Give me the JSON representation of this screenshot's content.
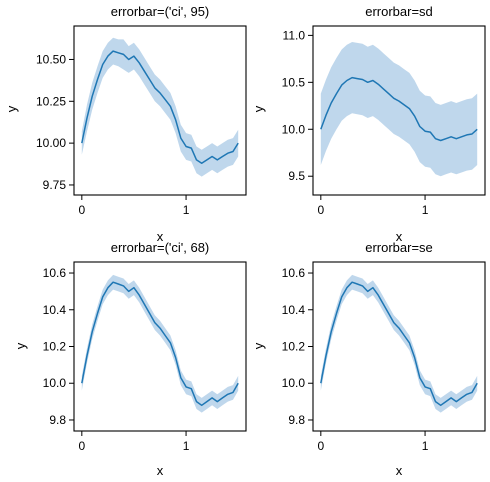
{
  "chart_data": [
    {
      "type": "line",
      "title": "errorbar=('ci', 95)",
      "xlabel": "x",
      "ylabel": "y",
      "xlim": [
        -0.075,
        1.575
      ],
      "ylim": [
        9.69,
        10.7
      ],
      "xticks": [
        0,
        1
      ],
      "yticks": [
        9.75,
        10.0,
        10.25,
        10.5
      ],
      "ytick_labels": [
        "9.75",
        "10.00",
        "10.25",
        "10.50"
      ],
      "grid": false,
      "color": "#1f77b4",
      "band_color": "#a9c9e6",
      "series": [
        {
          "x": [
            0.0,
            0.05,
            0.1,
            0.15,
            0.2,
            0.25,
            0.3,
            0.35,
            0.4,
            0.45,
            0.5,
            0.55,
            0.6,
            0.65,
            0.7,
            0.75,
            0.8,
            0.85,
            0.9,
            0.95,
            1.0,
            1.05,
            1.1,
            1.15,
            1.2,
            1.25,
            1.3,
            1.35,
            1.4,
            1.45,
            1.5
          ],
          "y": [
            10.0,
            10.15,
            10.28,
            10.38,
            10.47,
            10.52,
            10.55,
            10.54,
            10.53,
            10.5,
            10.52,
            10.48,
            10.43,
            10.38,
            10.33,
            10.3,
            10.26,
            10.22,
            10.14,
            10.03,
            9.98,
            9.97,
            9.9,
            9.88,
            9.9,
            9.92,
            9.9,
            9.92,
            9.94,
            9.95,
            10.0
          ],
          "lower": [
            9.93,
            10.07,
            10.2,
            10.3,
            10.39,
            10.44,
            10.47,
            10.46,
            10.44,
            10.42,
            10.44,
            10.4,
            10.35,
            10.3,
            10.25,
            10.22,
            10.18,
            10.14,
            10.06,
            9.95,
            9.9,
            9.89,
            9.82,
            9.8,
            9.82,
            9.84,
            9.82,
            9.84,
            9.86,
            9.87,
            9.92
          ],
          "upper": [
            10.07,
            10.23,
            10.36,
            10.46,
            10.55,
            10.6,
            10.63,
            10.62,
            10.62,
            10.58,
            10.6,
            10.56,
            10.51,
            10.46,
            10.41,
            10.38,
            10.34,
            10.3,
            10.22,
            10.11,
            10.06,
            10.05,
            9.98,
            9.96,
            9.98,
            10.0,
            9.98,
            10.0,
            10.02,
            10.03,
            10.08
          ]
        }
      ]
    },
    {
      "type": "line",
      "title": "errorbar=sd",
      "xlabel": "x",
      "ylabel": "y",
      "xlim": [
        -0.075,
        1.575
      ],
      "ylim": [
        9.3,
        11.1
      ],
      "xticks": [
        0,
        1
      ],
      "yticks": [
        9.5,
        10.0,
        10.5,
        11.0
      ],
      "ytick_labels": [
        "9.5",
        "10.0",
        "10.5",
        "11.0"
      ],
      "grid": false,
      "color": "#1f77b4",
      "band_color": "#a9c9e6",
      "series": [
        {
          "x": [
            0.0,
            0.05,
            0.1,
            0.15,
            0.2,
            0.25,
            0.3,
            0.35,
            0.4,
            0.45,
            0.5,
            0.55,
            0.6,
            0.65,
            0.7,
            0.75,
            0.8,
            0.85,
            0.9,
            0.95,
            1.0,
            1.05,
            1.1,
            1.15,
            1.2,
            1.25,
            1.3,
            1.35,
            1.4,
            1.45,
            1.5
          ],
          "y": [
            10.0,
            10.15,
            10.28,
            10.38,
            10.47,
            10.52,
            10.55,
            10.54,
            10.53,
            10.5,
            10.52,
            10.48,
            10.43,
            10.38,
            10.33,
            10.3,
            10.26,
            10.22,
            10.14,
            10.03,
            9.98,
            9.97,
            9.9,
            9.88,
            9.9,
            9.92,
            9.9,
            9.92,
            9.94,
            9.95,
            10.0
          ],
          "lower": [
            9.62,
            9.77,
            9.9,
            10.0,
            10.09,
            10.14,
            10.17,
            10.16,
            10.15,
            10.12,
            10.14,
            10.1,
            10.05,
            10.0,
            9.95,
            9.92,
            9.88,
            9.84,
            9.76,
            9.65,
            9.6,
            9.59,
            9.52,
            9.5,
            9.52,
            9.54,
            9.52,
            9.54,
            9.56,
            9.57,
            9.62
          ],
          "upper": [
            10.38,
            10.53,
            10.66,
            10.76,
            10.85,
            10.9,
            10.93,
            10.92,
            10.91,
            10.88,
            10.9,
            10.86,
            10.81,
            10.76,
            10.71,
            10.68,
            10.64,
            10.6,
            10.52,
            10.41,
            10.36,
            10.35,
            10.28,
            10.26,
            10.28,
            10.3,
            10.28,
            10.3,
            10.32,
            10.33,
            10.38
          ]
        }
      ]
    },
    {
      "type": "line",
      "title": "errorbar=('ci', 68)",
      "xlabel": "x",
      "ylabel": "y",
      "xlim": [
        -0.075,
        1.575
      ],
      "ylim": [
        9.74,
        10.66
      ],
      "xticks": [
        0,
        1
      ],
      "yticks": [
        9.8,
        10.0,
        10.2,
        10.4,
        10.6
      ],
      "ytick_labels": [
        "9.8",
        "10.0",
        "10.2",
        "10.4",
        "10.6"
      ],
      "grid": false,
      "color": "#1f77b4",
      "band_color": "#a9c9e6",
      "series": [
        {
          "x": [
            0.0,
            0.05,
            0.1,
            0.15,
            0.2,
            0.25,
            0.3,
            0.35,
            0.4,
            0.45,
            0.5,
            0.55,
            0.6,
            0.65,
            0.7,
            0.75,
            0.8,
            0.85,
            0.9,
            0.95,
            1.0,
            1.05,
            1.1,
            1.15,
            1.2,
            1.25,
            1.3,
            1.35,
            1.4,
            1.45,
            1.5
          ],
          "y": [
            10.0,
            10.15,
            10.28,
            10.38,
            10.47,
            10.52,
            10.55,
            10.54,
            10.53,
            10.5,
            10.52,
            10.48,
            10.43,
            10.38,
            10.33,
            10.3,
            10.26,
            10.22,
            10.14,
            10.03,
            9.98,
            9.97,
            9.9,
            9.88,
            9.9,
            9.92,
            9.9,
            9.92,
            9.94,
            9.95,
            10.0
          ],
          "lower": [
            9.96,
            10.11,
            10.24,
            10.34,
            10.43,
            10.48,
            10.51,
            10.5,
            10.49,
            10.46,
            10.48,
            10.44,
            10.39,
            10.34,
            10.29,
            10.26,
            10.22,
            10.18,
            10.1,
            9.99,
            9.94,
            9.93,
            9.86,
            9.84,
            9.86,
            9.88,
            9.86,
            9.88,
            9.9,
            9.91,
            9.96
          ],
          "upper": [
            10.04,
            10.19,
            10.32,
            10.42,
            10.51,
            10.56,
            10.59,
            10.58,
            10.57,
            10.54,
            10.56,
            10.52,
            10.47,
            10.42,
            10.37,
            10.34,
            10.3,
            10.26,
            10.18,
            10.07,
            10.02,
            10.01,
            9.94,
            9.92,
            9.94,
            9.96,
            9.94,
            9.96,
            9.98,
            9.99,
            10.04
          ]
        }
      ]
    },
    {
      "type": "line",
      "title": "errorbar=se",
      "xlabel": "x",
      "ylabel": "y",
      "xlim": [
        -0.075,
        1.575
      ],
      "ylim": [
        9.74,
        10.66
      ],
      "xticks": [
        0,
        1
      ],
      "yticks": [
        9.8,
        10.0,
        10.2,
        10.4,
        10.6
      ],
      "ytick_labels": [
        "9.8",
        "10.0",
        "10.2",
        "10.4",
        "10.6"
      ],
      "grid": false,
      "color": "#1f77b4",
      "band_color": "#a9c9e6",
      "series": [
        {
          "x": [
            0.0,
            0.05,
            0.1,
            0.15,
            0.2,
            0.25,
            0.3,
            0.35,
            0.4,
            0.45,
            0.5,
            0.55,
            0.6,
            0.65,
            0.7,
            0.75,
            0.8,
            0.85,
            0.9,
            0.95,
            1.0,
            1.05,
            1.1,
            1.15,
            1.2,
            1.25,
            1.3,
            1.35,
            1.4,
            1.45,
            1.5
          ],
          "y": [
            10.0,
            10.15,
            10.28,
            10.38,
            10.47,
            10.52,
            10.55,
            10.54,
            10.53,
            10.5,
            10.52,
            10.48,
            10.43,
            10.38,
            10.33,
            10.3,
            10.26,
            10.22,
            10.14,
            10.03,
            9.98,
            9.97,
            9.9,
            9.88,
            9.9,
            9.92,
            9.9,
            9.92,
            9.94,
            9.95,
            10.0
          ],
          "lower": [
            9.96,
            10.11,
            10.24,
            10.34,
            10.43,
            10.48,
            10.51,
            10.5,
            10.49,
            10.46,
            10.48,
            10.44,
            10.39,
            10.34,
            10.29,
            10.26,
            10.22,
            10.18,
            10.1,
            9.99,
            9.94,
            9.93,
            9.86,
            9.84,
            9.86,
            9.88,
            9.86,
            9.88,
            9.9,
            9.91,
            9.96
          ],
          "upper": [
            10.04,
            10.19,
            10.32,
            10.42,
            10.51,
            10.56,
            10.59,
            10.58,
            10.57,
            10.54,
            10.56,
            10.52,
            10.47,
            10.42,
            10.37,
            10.34,
            10.3,
            10.26,
            10.18,
            10.07,
            10.02,
            10.01,
            9.94,
            9.92,
            9.94,
            9.96,
            9.94,
            9.96,
            9.98,
            9.99,
            10.04
          ]
        }
      ]
    }
  ]
}
